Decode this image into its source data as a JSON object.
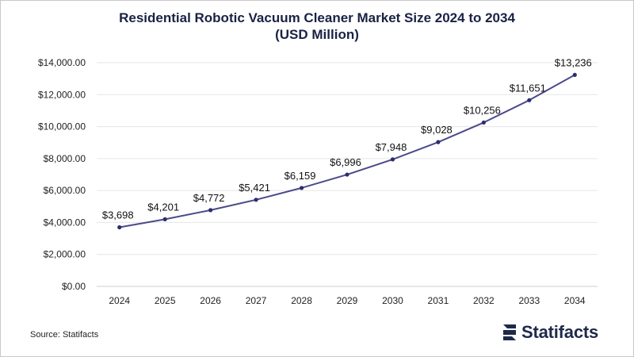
{
  "title_line1": "Residential Robotic Vacuum Cleaner Market Size 2024 to 2034",
  "title_line2": "(USD Million)",
  "source": "Source: Statifacts",
  "logo_text": "Statifacts",
  "colors": {
    "line": "#4b4a8a",
    "marker": "#2e2d6e",
    "grid": "#e6e6e6",
    "logo": "#1f2a4a"
  },
  "chart_data": {
    "type": "line",
    "categories": [
      "2024",
      "2025",
      "2026",
      "2027",
      "2028",
      "2029",
      "2030",
      "2031",
      "2032",
      "2033",
      "2034"
    ],
    "series": [
      {
        "values": [
          3698,
          4201,
          4772,
          5421,
          6159,
          6996,
          7948,
          9028,
          10256,
          11651,
          13236
        ],
        "labels": [
          "$3,698",
          "$4,201",
          "$4,772",
          "$5,421",
          "$6,159",
          "$6,996",
          "$7,948",
          "$9,028",
          "$10,256",
          "$11,651",
          "$13,236"
        ]
      }
    ],
    "title": "Residential Robotic Vacuum Cleaner Market Size 2024 to 2034 (USD Million)",
    "ylim": [
      0,
      14000
    ],
    "yticks": [
      0,
      2000,
      4000,
      6000,
      8000,
      10000,
      12000,
      14000
    ],
    "ytick_labels": [
      "$0.00",
      "$2,000.00",
      "$4,000.00",
      "$6,000.00",
      "$8,000.00",
      "$10,000.00",
      "$12,000.00",
      "$14,000.00"
    ],
    "grid": true,
    "legend": "none"
  }
}
